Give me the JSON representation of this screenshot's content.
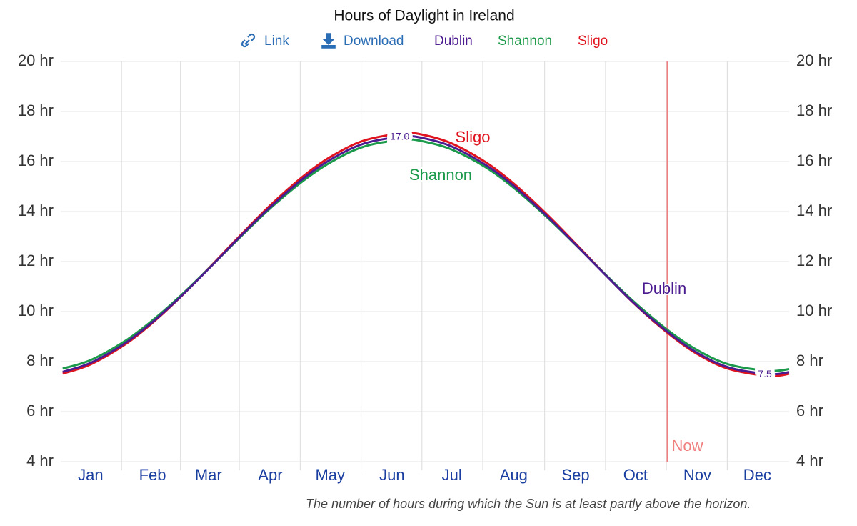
{
  "toolbar": {
    "link": "Link",
    "download": "Download"
  },
  "chart_data": {
    "type": "line",
    "title": "Hours of Daylight in Ireland",
    "caption": "The number of hours during which the Sun is at least partly above the horizon.",
    "x": [
      1,
      15,
      32,
      46,
      60,
      74,
      91,
      105,
      121,
      135,
      152,
      172,
      182,
      196,
      213,
      227,
      244,
      258,
      274,
      288,
      305,
      319,
      335,
      355,
      365
    ],
    "xlim": [
      0,
      365
    ],
    "xticks": [
      {
        "value": 15,
        "label": "Jan"
      },
      {
        "value": 46,
        "label": "Feb"
      },
      {
        "value": 74,
        "label": "Mar"
      },
      {
        "value": 105,
        "label": "Apr"
      },
      {
        "value": 135,
        "label": "May"
      },
      {
        "value": 166,
        "label": "Jun"
      },
      {
        "value": 196,
        "label": "Jul"
      },
      {
        "value": 227,
        "label": "Aug"
      },
      {
        "value": 258,
        "label": "Sep"
      },
      {
        "value": 288,
        "label": "Oct"
      },
      {
        "value": 319,
        "label": "Nov"
      },
      {
        "value": 349,
        "label": "Dec"
      }
    ],
    "ylim": [
      4,
      20
    ],
    "yticks": [
      {
        "value": 4,
        "label": "4 hr"
      },
      {
        "value": 6,
        "label": "6 hr"
      },
      {
        "value": 8,
        "label": "8 hr"
      },
      {
        "value": 10,
        "label": "10 hr"
      },
      {
        "value": 12,
        "label": "12 hr"
      },
      {
        "value": 14,
        "label": "14 hr"
      },
      {
        "value": 16,
        "label": "16 hr"
      },
      {
        "value": 18,
        "label": "18 hr"
      },
      {
        "value": 20,
        "label": "20 hr"
      }
    ],
    "grid": true,
    "now": {
      "label": "Now",
      "x": 304,
      "color": "#f08080"
    },
    "series": [
      {
        "name": "Dublin",
        "color": "#4b1b8f",
        "values": [
          7.59,
          7.95,
          8.72,
          9.58,
          10.59,
          11.7,
          13.09,
          14.18,
          15.29,
          16.07,
          16.72,
          17.0,
          16.93,
          16.6,
          15.86,
          15.03,
          13.79,
          12.68,
          11.38,
          10.28,
          9.13,
          8.35,
          7.76,
          7.5,
          7.58
        ],
        "value_labels": [
          null,
          null,
          null,
          null,
          null,
          null,
          null,
          null,
          null,
          null,
          null,
          "17.0",
          null,
          null,
          null,
          null,
          null,
          null,
          null,
          null,
          null,
          null,
          null,
          "7.5",
          null
        ]
      },
      {
        "name": "Shannon",
        "color": "#1a9a4a",
        "values": [
          7.72,
          8.06,
          8.81,
          9.65,
          10.63,
          11.71,
          13.06,
          14.13,
          15.2,
          15.96,
          16.6,
          16.87,
          16.8,
          16.48,
          15.77,
          14.95,
          13.75,
          12.67,
          11.4,
          10.34,
          9.21,
          8.46,
          7.88,
          7.63,
          7.7
        ]
      },
      {
        "name": "Sligo",
        "color": "#e0141e",
        "values": [
          7.52,
          7.89,
          8.67,
          9.55,
          10.58,
          11.72,
          13.13,
          14.25,
          15.38,
          16.18,
          16.84,
          17.13,
          17.06,
          16.72,
          15.97,
          15.12,
          13.86,
          12.72,
          11.39,
          10.27,
          9.09,
          8.3,
          7.7,
          7.43,
          7.51
        ]
      }
    ]
  }
}
